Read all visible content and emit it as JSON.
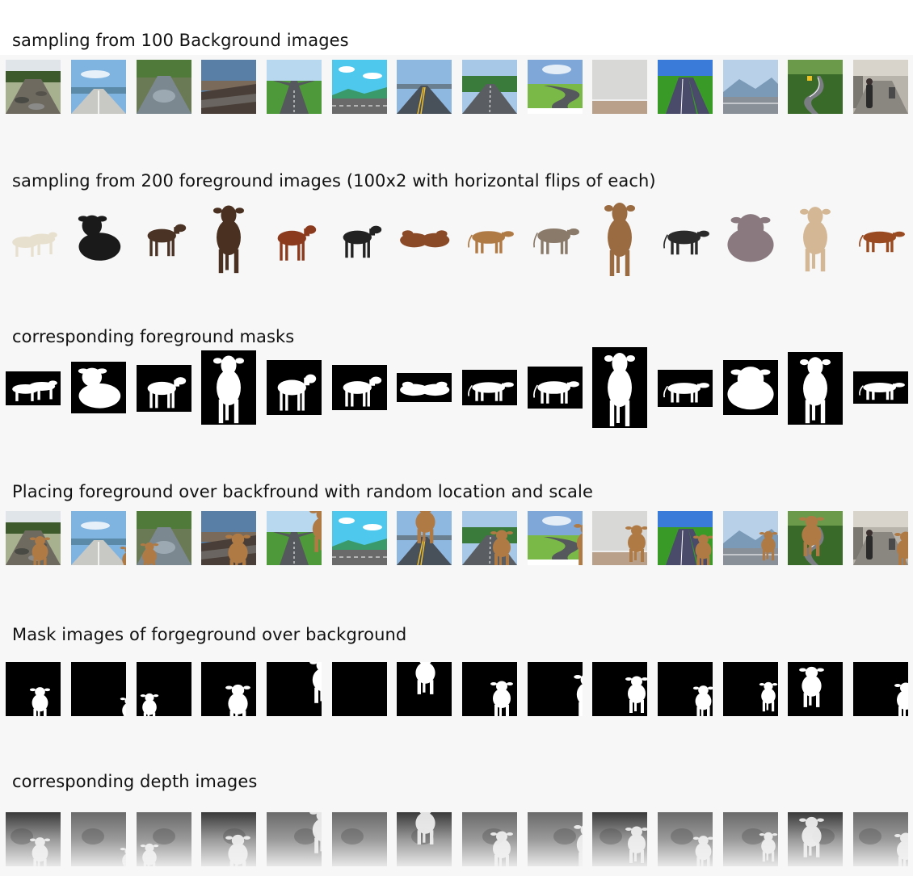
{
  "sections": [
    {
      "id": "backgrounds",
      "title": "sampling from 100 Background images"
    },
    {
      "id": "foregrounds",
      "title": "sampling from 200 foreground images (100x2 with horizontal flips of each)"
    },
    {
      "id": "masks",
      "title": "corresponding foreground masks"
    },
    {
      "id": "composites",
      "title": "Placing foreground over backfround with random location and scale"
    },
    {
      "id": "composite_masks",
      "title": "Mask images of forgeground over background"
    },
    {
      "id": "depth",
      "title": "corresponding depth images"
    }
  ],
  "backgrounds": [
    {
      "kind": "damaged-road",
      "name": "background-damaged-road"
    },
    {
      "kind": "coastal-road",
      "name": "background-coastal-road"
    },
    {
      "kind": "wet-road",
      "name": "background-wet-road"
    },
    {
      "kind": "landslide-road",
      "name": "background-landslide-road"
    },
    {
      "kind": "forked-road",
      "name": "background-forked-road"
    },
    {
      "kind": "cartoon-road",
      "name": "background-cartoon-road"
    },
    {
      "kind": "highway",
      "name": "background-highway"
    },
    {
      "kind": "rural-road",
      "name": "background-rural-road"
    },
    {
      "kind": "curved-road",
      "name": "background-curved-road"
    },
    {
      "kind": "room-wall",
      "name": "background-room-wall"
    },
    {
      "kind": "green-road",
      "name": "background-green-road"
    },
    {
      "kind": "mountain-road",
      "name": "background-mountain-road"
    },
    {
      "kind": "jungle-road",
      "name": "background-jungle-road"
    },
    {
      "kind": "street-scene",
      "name": "background-street-scene"
    }
  ],
  "foregrounds": [
    {
      "kind": "two-cows",
      "color": "#e8e0cf",
      "name": "foreground-two-cows"
    },
    {
      "kind": "lying-calf",
      "color": "#1a1a1a",
      "name": "foreground-lying-bw-calf"
    },
    {
      "kind": "calf",
      "color": "#4a3325",
      "name": "foreground-brown-calf"
    },
    {
      "kind": "standing-front",
      "color": "#4a3020",
      "name": "foreground-dark-calf-front"
    },
    {
      "kind": "calf",
      "color": "#8b3a1e",
      "name": "foreground-red-white-calf"
    },
    {
      "kind": "calf",
      "color": "#222222",
      "name": "foreground-bw-calf"
    },
    {
      "kind": "lying-pair",
      "color": "#8a4a28",
      "name": "foreground-lying-cows"
    },
    {
      "kind": "cow-side",
      "color": "#b07a45",
      "name": "foreground-jersey-cow"
    },
    {
      "kind": "cow-side",
      "color": "#8a7a6a",
      "name": "foreground-grey-cow"
    },
    {
      "kind": "standing-front",
      "color": "#9a6a40",
      "name": "foreground-large-brown-cow"
    },
    {
      "kind": "cow-side",
      "color": "#2a2a2a",
      "name": "foreground-holstein-cow"
    },
    {
      "kind": "lying-big",
      "color": "#8a7a80",
      "name": "foreground-zebu-lying"
    },
    {
      "kind": "standing-front",
      "color": "#d4b896",
      "name": "foreground-cream-cow"
    },
    {
      "kind": "cow-side",
      "color": "#9a4a20",
      "name": "foreground-red-cow"
    }
  ],
  "masks": [
    {
      "kind": "two-cows",
      "name": "mask-two-cows"
    },
    {
      "kind": "lying-calf",
      "name": "mask-lying-calf"
    },
    {
      "kind": "calf",
      "name": "mask-brown-calf"
    },
    {
      "kind": "standing-front",
      "name": "mask-dark-calf-front"
    },
    {
      "kind": "calf",
      "name": "mask-red-white-calf"
    },
    {
      "kind": "calf",
      "name": "mask-bw-calf"
    },
    {
      "kind": "lying-pair",
      "name": "mask-lying-cows"
    },
    {
      "kind": "cow-side",
      "name": "mask-jersey-cow"
    },
    {
      "kind": "cow-side",
      "name": "mask-grey-cow"
    },
    {
      "kind": "standing-front",
      "name": "mask-large-brown-cow"
    },
    {
      "kind": "cow-side",
      "name": "mask-holstein-cow"
    },
    {
      "kind": "lying-big",
      "name": "mask-zebu-lying"
    },
    {
      "kind": "standing-front",
      "name": "mask-cream-cow"
    },
    {
      "kind": "cow-side",
      "name": "mask-red-cow"
    }
  ],
  "composites": [
    {
      "bg": "damaged-road",
      "name": "composite-damaged-road"
    },
    {
      "bg": "coastal-road",
      "name": "composite-coastal-road"
    },
    {
      "bg": "wet-road",
      "name": "composite-wet-road"
    },
    {
      "bg": "landslide-road",
      "name": "composite-landslide-road"
    },
    {
      "bg": "forked-road",
      "name": "composite-forked-road"
    },
    {
      "bg": "cartoon-road",
      "name": "composite-cartoon-road"
    },
    {
      "bg": "highway",
      "name": "composite-highway"
    },
    {
      "bg": "rural-road",
      "name": "composite-rural-road"
    },
    {
      "bg": "curved-road",
      "name": "composite-curved-road"
    },
    {
      "bg": "room-wall",
      "name": "composite-room-wall"
    },
    {
      "bg": "green-road",
      "name": "composite-green-road"
    },
    {
      "bg": "mountain-road",
      "name": "composite-mountain-road"
    },
    {
      "bg": "jungle-road",
      "name": "composite-jungle-road"
    },
    {
      "bg": "street-scene",
      "name": "composite-street-scene"
    }
  ],
  "composite_masks": [
    {
      "name": "composite-mask-1"
    },
    {
      "name": "composite-mask-2"
    },
    {
      "name": "composite-mask-3"
    },
    {
      "name": "composite-mask-4"
    },
    {
      "name": "composite-mask-5"
    },
    {
      "name": "composite-mask-6"
    },
    {
      "name": "composite-mask-7"
    },
    {
      "name": "composite-mask-8"
    },
    {
      "name": "composite-mask-9"
    },
    {
      "name": "composite-mask-10"
    },
    {
      "name": "composite-mask-11"
    },
    {
      "name": "composite-mask-12"
    },
    {
      "name": "composite-mask-13"
    },
    {
      "name": "composite-mask-14"
    }
  ],
  "depth": [
    {
      "name": "depth-1"
    },
    {
      "name": "depth-2"
    },
    {
      "name": "depth-3"
    },
    {
      "name": "depth-4"
    },
    {
      "name": "depth-5"
    },
    {
      "name": "depth-6"
    },
    {
      "name": "depth-7"
    },
    {
      "name": "depth-8"
    },
    {
      "name": "depth-9"
    },
    {
      "name": "depth-10"
    },
    {
      "name": "depth-11"
    },
    {
      "name": "depth-12"
    },
    {
      "name": "depth-13"
    },
    {
      "name": "depth-14"
    }
  ],
  "colors": {
    "page": "#f7f7f7",
    "mask_fg": "#ffffff",
    "mask_bg": "#000000"
  }
}
